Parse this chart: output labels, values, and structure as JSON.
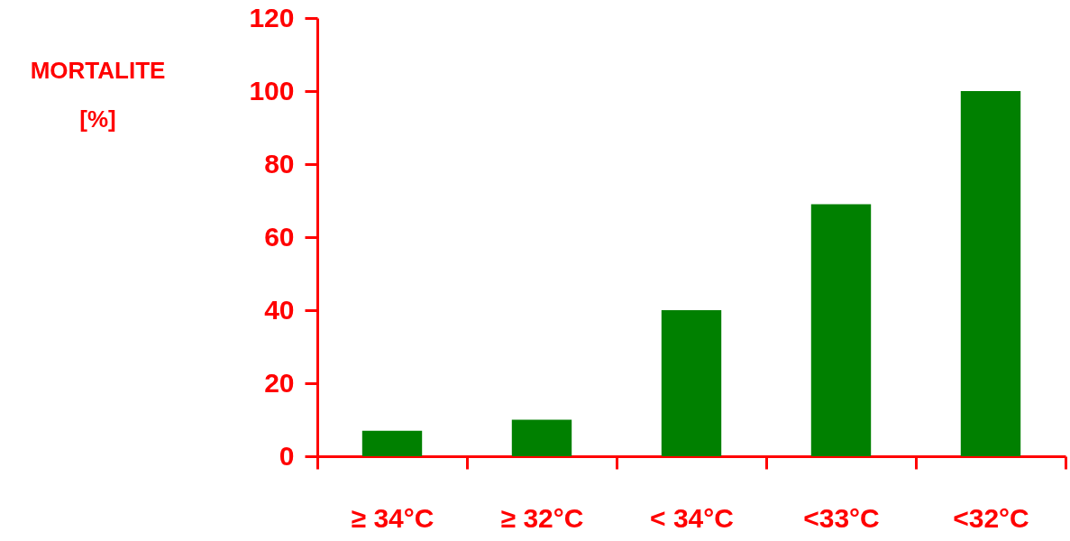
{
  "chart_data": {
    "type": "bar",
    "ylabel": "MORTALITE [%]",
    "categories": [
      "≥ 34°C",
      "≥ 32°C",
      "< 34°C",
      "<33°C",
      "<32°C"
    ],
    "values": [
      7,
      10,
      40,
      69,
      100
    ],
    "color": "#008000",
    "ylim": [
      0,
      120
    ],
    "yticks": [
      0,
      20,
      40,
      60,
      80,
      100,
      120
    ],
    "grid": false
  }
}
